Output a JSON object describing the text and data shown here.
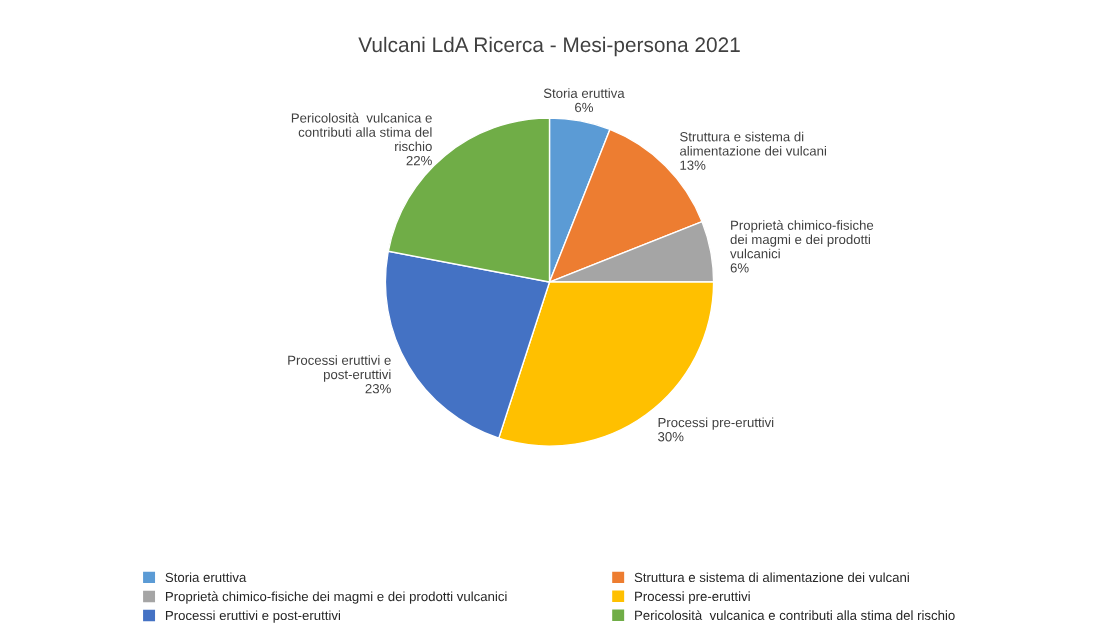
{
  "chart_data": {
    "type": "pie",
    "title": "Vulcani LdA Ricerca - Mesi-persona 2021",
    "categories": [
      "Storia eruttiva",
      "Struttura e sistema di alimentazione dei vulcani",
      "Proprietà chimico-fisiche dei magmi e dei prodotti vulcanici",
      "Processi pre-eruttivi",
      "Processi eruttivi e post-eruttivi",
      "Pericolosità  vulcanica e contributi alla stima del rischio"
    ],
    "values": [
      6,
      13,
      6,
      30,
      23,
      22
    ],
    "colors": [
      "#5b9bd5",
      "#ed7d31",
      "#a5a5a5",
      "#ffc000",
      "#4472c4",
      "#70ad47"
    ],
    "value_labels": [
      "6%",
      "13%",
      "6%",
      "30%",
      "23%",
      "22%"
    ],
    "legend": "bottom"
  }
}
